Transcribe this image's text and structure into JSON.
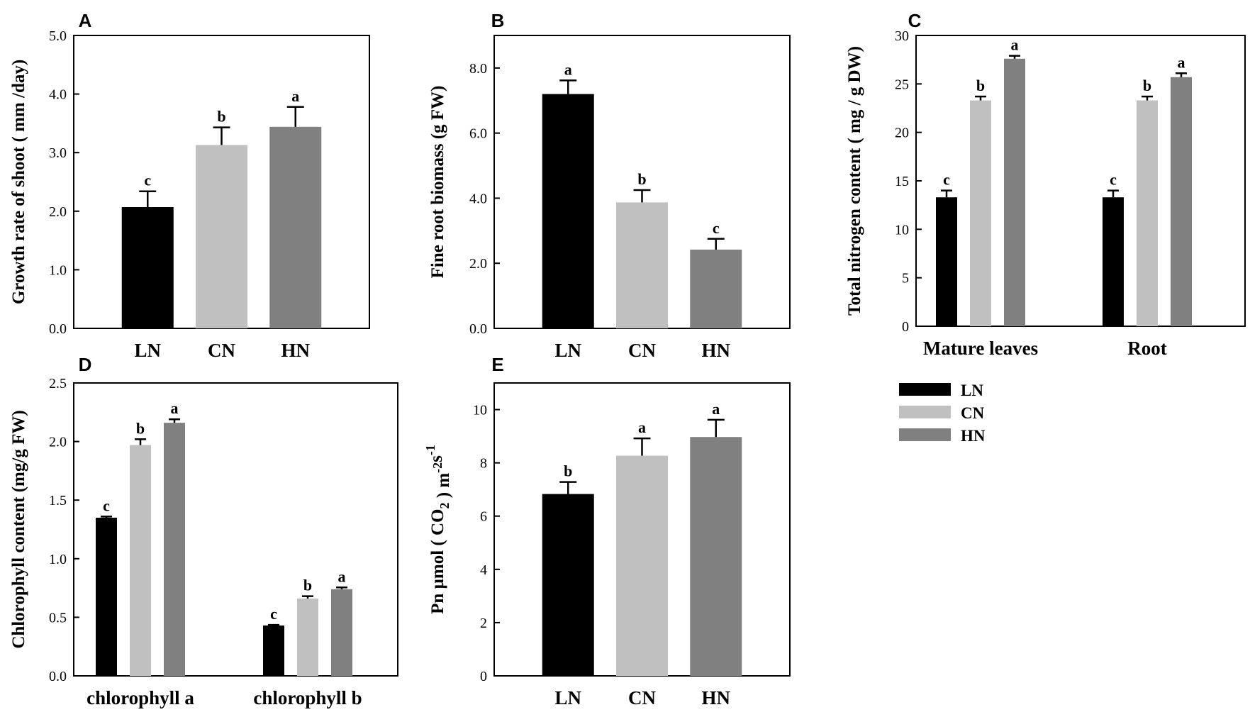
{
  "colors": {
    "LN": "#000000",
    "CN": "#c0c0c0",
    "HN": "#808080"
  },
  "legend": [
    {
      "key": "LN",
      "label": "LN",
      "color": "#000000"
    },
    {
      "key": "CN",
      "label": "CN",
      "color": "#c0c0c0"
    },
    {
      "key": "HN",
      "label": "HN",
      "color": "#808080"
    }
  ],
  "chart_data": [
    {
      "panel": "A",
      "type": "bar",
      "ylabel": "Growth rate of shoot ( mm /day)",
      "ylim": [
        0,
        5
      ],
      "yticks": [
        "0.0",
        "1.0",
        "2.0",
        "3.0",
        "4.0",
        "5.0"
      ],
      "ytick_values": [
        0,
        1,
        2,
        3,
        4,
        5
      ],
      "groups": [
        {
          "label": "",
          "bars": [
            {
              "label": "LN",
              "value": 2.07,
              "error": 0.27,
              "sig": "c"
            },
            {
              "label": "CN",
              "value": 3.13,
              "error": 0.3,
              "sig": "b"
            },
            {
              "label": "HN",
              "value": 3.44,
              "error": 0.34,
              "sig": "a"
            }
          ]
        }
      ]
    },
    {
      "panel": "B",
      "type": "bar",
      "ylabel": "Fine root biomass (g FW)",
      "ylim": [
        0,
        9
      ],
      "yticks": [
        "0.0",
        "2.0",
        "4.0",
        "6.0",
        "8.0"
      ],
      "ytick_values": [
        0,
        2,
        4,
        6,
        8
      ],
      "groups": [
        {
          "label": "",
          "bars": [
            {
              "label": "LN",
              "value": 7.2,
              "error": 0.42,
              "sig": "a"
            },
            {
              "label": "CN",
              "value": 3.87,
              "error": 0.38,
              "sig": "b"
            },
            {
              "label": "HN",
              "value": 2.42,
              "error": 0.33,
              "sig": "c"
            }
          ]
        }
      ]
    },
    {
      "panel": "C",
      "type": "bar",
      "ylabel": "Total nitrogen content ( mg / g DW)",
      "ylim": [
        0,
        30
      ],
      "yticks": [
        "0",
        "5",
        "10",
        "15",
        "20",
        "25",
        "30"
      ],
      "ytick_values": [
        0,
        5,
        10,
        15,
        20,
        25,
        30
      ],
      "groups": [
        {
          "label": "Mature leaves",
          "bars": [
            {
              "label": "LN",
              "value": 13.3,
              "error": 0.7,
              "sig": "c"
            },
            {
              "label": "CN",
              "value": 23.3,
              "error": 0.4,
              "sig": "b"
            },
            {
              "label": "HN",
              "value": 27.6,
              "error": 0.3,
              "sig": "a"
            }
          ]
        },
        {
          "label": "Root",
          "bars": [
            {
              "label": "LN",
              "value": 13.3,
              "error": 0.7,
              "sig": "c"
            },
            {
              "label": "CN",
              "value": 23.3,
              "error": 0.4,
              "sig": "b"
            },
            {
              "label": "HN",
              "value": 25.7,
              "error": 0.4,
              "sig": "a"
            }
          ]
        }
      ]
    },
    {
      "panel": "D",
      "type": "bar",
      "ylabel": "Chlorophyll content (mg/g FW)",
      "ylim": [
        0,
        2.5
      ],
      "yticks": [
        "0.0",
        "0.5",
        "1.0",
        "1.5",
        "2.0",
        "2.5"
      ],
      "ytick_values": [
        0,
        0.5,
        1.0,
        1.5,
        2.0,
        2.5
      ],
      "groups": [
        {
          "label": "chlorophyll a",
          "bars": [
            {
              "label": "LN",
              "value": 1.35,
              "error": 0.01,
              "sig": "c"
            },
            {
              "label": "CN",
              "value": 1.97,
              "error": 0.05,
              "sig": "b"
            },
            {
              "label": "HN",
              "value": 2.16,
              "error": 0.03,
              "sig": "a"
            }
          ]
        },
        {
          "label": "chlorophyll b",
          "bars": [
            {
              "label": "LN",
              "value": 0.43,
              "error": 0.005,
              "sig": "c"
            },
            {
              "label": "CN",
              "value": 0.66,
              "error": 0.02,
              "sig": "b"
            },
            {
              "label": "HN",
              "value": 0.74,
              "error": 0.015,
              "sig": "a"
            }
          ]
        }
      ]
    },
    {
      "panel": "E",
      "type": "bar",
      "ylabel": "Pn µmol ( CO",
      "ylabel_sub": "2",
      "ylabel_mid": " ) m",
      "ylabel_sup1": "-2",
      "ylabel_mid2": "s",
      "ylabel_sup2": "-1",
      "ylim": [
        0,
        11
      ],
      "yticks": [
        "0",
        "2",
        "4",
        "6",
        "8",
        "10"
      ],
      "ytick_values": [
        0,
        2,
        4,
        6,
        8,
        10
      ],
      "groups": [
        {
          "label": "",
          "bars": [
            {
              "label": "LN",
              "value": 6.83,
              "error": 0.45,
              "sig": "b"
            },
            {
              "label": "CN",
              "value": 8.27,
              "error": 0.65,
              "sig": "a"
            },
            {
              "label": "HN",
              "value": 8.97,
              "error": 0.65,
              "sig": "a"
            }
          ]
        }
      ]
    }
  ]
}
